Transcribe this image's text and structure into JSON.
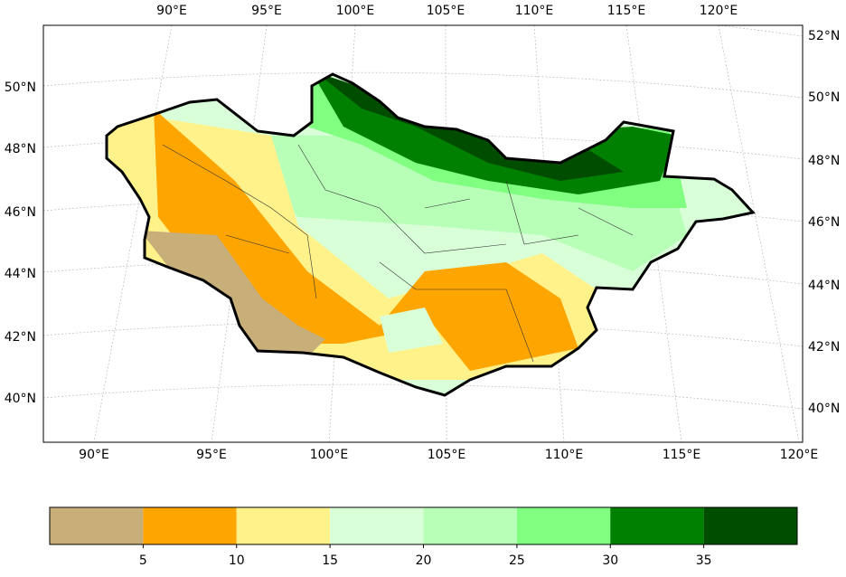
{
  "map": {
    "top_lon_labels": [
      "90°E",
      "95°E",
      "100°E",
      "105°E",
      "110°E",
      "115°E",
      "120°E"
    ],
    "bottom_lon_labels": [
      "90°E",
      "95°E",
      "100°E",
      "105°E",
      "110°E",
      "115°E",
      "120°E"
    ],
    "left_lat_labels": [
      "50°N",
      "48°N",
      "46°N",
      "44°N",
      "42°N",
      "40°N"
    ],
    "right_lat_labels": [
      "52°N",
      "50°N",
      "48°N",
      "46°N",
      "44°N",
      "42°N",
      "40°N"
    ]
  },
  "colorbar": {
    "colors": [
      "#c8ae78",
      "#ffa500",
      "#fff28a",
      "#d9ffd9",
      "#b8ffb8",
      "#80ff80",
      "#008000",
      "#004d00"
    ],
    "lim": [
      0,
      40
    ],
    "ticks": [
      5,
      10,
      15,
      20,
      25,
      30,
      35
    ]
  }
}
